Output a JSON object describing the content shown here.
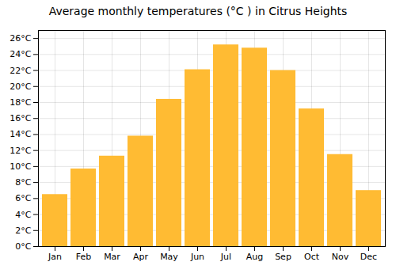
{
  "chart_data": {
    "type": "bar",
    "title": "Average monthly temperatures (°C ) in Citrus Heights",
    "categories": [
      "Jan",
      "Feb",
      "Mar",
      "Apr",
      "May",
      "Jun",
      "Jul",
      "Aug",
      "Sep",
      "Oct",
      "Nov",
      "Dec"
    ],
    "values": [
      6.5,
      9.7,
      11.3,
      13.8,
      18.4,
      22.1,
      25.2,
      24.8,
      22.0,
      17.2,
      11.5,
      7.0
    ],
    "color": "#FFBB33",
    "ylim": [
      0,
      27
    ],
    "yticks": [
      {
        "value": 0,
        "label": "0°C"
      },
      {
        "value": 2,
        "label": "2°C"
      },
      {
        "value": 4,
        "label": "4°C"
      },
      {
        "value": 6,
        "label": "6°C"
      },
      {
        "value": 8,
        "label": "8°C"
      },
      {
        "value": 10,
        "label": "10°C"
      },
      {
        "value": 12,
        "label": "12°C"
      },
      {
        "value": 14,
        "label": "14°C"
      },
      {
        "value": 16,
        "label": "16°C"
      },
      {
        "value": 18,
        "label": "18°C"
      },
      {
        "value": 20,
        "label": "20°C"
      },
      {
        "value": 22,
        "label": "22°C"
      },
      {
        "value": 24,
        "label": "24°C"
      },
      {
        "value": 26,
        "label": "26°C"
      }
    ],
    "grid": true
  }
}
